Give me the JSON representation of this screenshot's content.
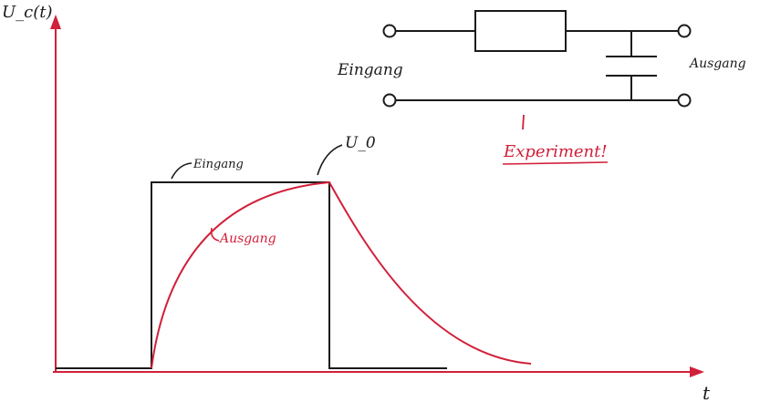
{
  "axes": {
    "y_label": "U_c(t)",
    "x_label": "t"
  },
  "plot_labels": {
    "input_curve": "Eingang",
    "output_curve": "Ausgang",
    "peak_voltage": "U_0"
  },
  "circuit": {
    "input_label": "Eingang",
    "output_label": "Ausgang",
    "note": "Experiment!"
  },
  "colors": {
    "ink": "#1a1a1a",
    "accent": "#d1203a"
  }
}
